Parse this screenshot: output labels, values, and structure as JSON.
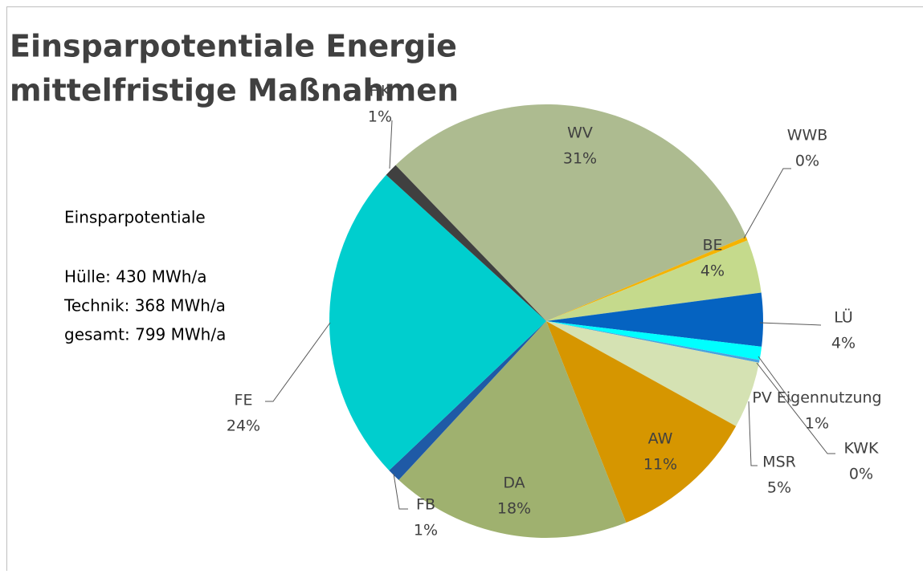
{
  "chart_data": {
    "type": "pie",
    "title": [
      "Einsparpotentiale Energie",
      "mittelfristige Maßnahmen"
    ],
    "annotation": [
      "Einsparpotentiale",
      "Hülle: 430 MWh/a",
      "Technik: 368 MWh/a",
      "gesamt: 799 MWh/a"
    ],
    "categories": [
      "WV",
      "WWB",
      "BE",
      "LÜ",
      "PV Eigennutzung",
      "KWK",
      "MSR",
      "AW",
      "DA",
      "FB",
      "FE",
      "HK"
    ],
    "values": [
      31,
      0.3,
      4,
      4,
      1,
      0.2,
      5,
      11,
      18,
      1,
      24,
      1
    ],
    "value_labels": [
      "31%",
      "0%",
      "4%",
      "4%",
      "1%",
      "0%",
      "5%",
      "11%",
      "18%",
      "1%",
      "24%",
      "1%"
    ],
    "colors": [
      "#adbb90",
      "#f5b300",
      "#c5da8c",
      "#0563c1",
      "#00ffff",
      "#4aa3df",
      "#d5e2b3",
      "#d69600",
      "#9fb16f",
      "#1f5aa6",
      "#00cece",
      "#404040"
    ]
  }
}
